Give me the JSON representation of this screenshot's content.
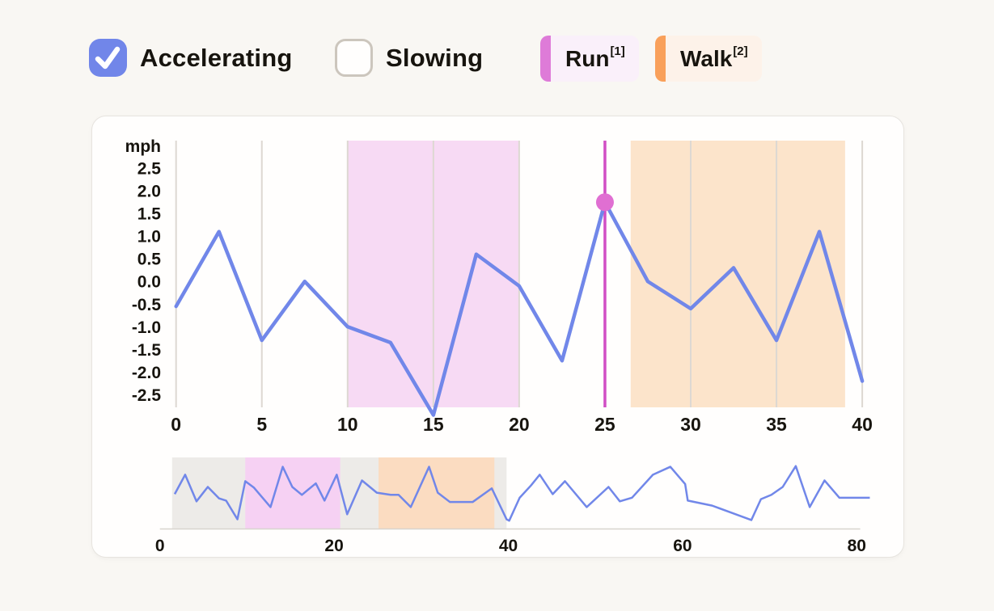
{
  "controls": {
    "accelerating": {
      "label": "Accelerating",
      "checked": true
    },
    "slowing": {
      "label": "Slowing",
      "checked": false
    }
  },
  "legend": [
    {
      "label": "Run",
      "sup": "[1]",
      "strip_color": "#de7bd8",
      "bg": "#faf0fa"
    },
    {
      "label": "Walk",
      "sup": "[2]",
      "strip_color": "#f9a05a",
      "bg": "#fdf2e9"
    }
  ],
  "colors": {
    "line_blue": "#7187e9",
    "checkbox_blue": "#7186e9",
    "grid": "#ddd8d2",
    "marker_line": "#d14fc5",
    "marker_dot": "#e06fd2",
    "region_run": "#f7daf4",
    "region_walk": "#fce4cb",
    "mini_selection": "#edebe8",
    "mini_run": "#f6d1f3",
    "mini_walk": "#fbdcc1",
    "mini_axis": "#d8d4ce"
  },
  "chart_data": {
    "type": "line",
    "unit_label": "mph",
    "main": {
      "x": [
        0,
        2.5,
        5,
        7.5,
        10,
        12.5,
        15,
        17.5,
        20,
        22.5,
        25,
        27.5,
        30,
        32.5,
        35,
        37.5,
        40
      ],
      "values": [
        -0.55,
        1.1,
        -1.3,
        0.0,
        -1.0,
        -1.35,
        -2.95,
        0.6,
        -0.1,
        -1.75,
        1.75,
        0.0,
        -0.6,
        0.3,
        -1.3,
        1.1,
        -2.2
      ],
      "xlim": [
        0,
        40
      ],
      "ylim": [
        -2.78,
        3.11
      ],
      "x_ticks": [
        0,
        5,
        10,
        15,
        20,
        25,
        30,
        35,
        40
      ],
      "x_tick_labels": [
        "0",
        "5",
        "10",
        "15",
        "20",
        "25",
        "30",
        "35",
        "40"
      ],
      "y_ticks": [
        2.5,
        2.0,
        1.5,
        1.0,
        0.5,
        0.0,
        -0.5,
        -1.0,
        -1.5,
        -2.0,
        -2.5
      ],
      "y_tick_labels": [
        "2.5",
        "2.0",
        "1.5",
        "1.0",
        "0.5",
        "0.0",
        "-0.5",
        "-1.0",
        "-1.5",
        "-2.0",
        "-2.5"
      ],
      "grid": "vertical-only",
      "regions": [
        {
          "name": "Run",
          "from": 10,
          "to": 20,
          "color": "#f7daf4"
        },
        {
          "name": "Walk",
          "from": 26.5,
          "to": 39,
          "color": "#fce4cb"
        }
      ],
      "marker": {
        "x": 25,
        "value": 1.75
      }
    },
    "mini": {
      "xlim": [
        0,
        82
      ],
      "x_ticks": [
        0,
        20,
        40,
        60,
        80
      ],
      "x_tick_labels": [
        "0",
        "20",
        "40",
        "60",
        "80"
      ],
      "y_normalized": true,
      "bands": [
        {
          "name": "view-window",
          "from": 1.4,
          "to": 39.8,
          "color": "#edebe8"
        },
        {
          "name": "Run",
          "from": 9.8,
          "to": 20.7,
          "color": "#f6d1f3"
        },
        {
          "name": "Walk",
          "from": 25.1,
          "to": 38.4,
          "color": "#fbdcc1"
        }
      ],
      "points": [
        [
          1.7,
          0.49
        ],
        [
          2.9,
          0.76
        ],
        [
          4.2,
          0.39
        ],
        [
          5.5,
          0.59
        ],
        [
          6.8,
          0.43
        ],
        [
          7.6,
          0.4
        ],
        [
          8.9,
          0.14
        ],
        [
          9.8,
          0.67
        ],
        [
          10.8,
          0.58
        ],
        [
          12.7,
          0.31
        ],
        [
          14.1,
          0.87
        ],
        [
          15.2,
          0.59
        ],
        [
          16.3,
          0.48
        ],
        [
          17.9,
          0.64
        ],
        [
          18.9,
          0.4
        ],
        [
          20.3,
          0.76
        ],
        [
          21.5,
          0.21
        ],
        [
          23.2,
          0.68
        ],
        [
          24.1,
          0.59
        ],
        [
          24.9,
          0.51
        ],
        [
          26.5,
          0.48
        ],
        [
          27.4,
          0.48
        ],
        [
          28.8,
          0.31
        ],
        [
          30.9,
          0.87
        ],
        [
          31.9,
          0.51
        ],
        [
          33.3,
          0.38
        ],
        [
          35.9,
          0.38
        ],
        [
          38.1,
          0.57
        ],
        [
          39.8,
          0.14
        ],
        [
          40.1,
          0.12
        ],
        [
          41.3,
          0.44
        ],
        [
          42.6,
          0.61
        ],
        [
          43.6,
          0.76
        ],
        [
          45.1,
          0.49
        ],
        [
          46.5,
          0.67
        ],
        [
          49.0,
          0.31
        ],
        [
          51.5,
          0.59
        ],
        [
          52.8,
          0.39
        ],
        [
          54.2,
          0.44
        ],
        [
          56.6,
          0.76
        ],
        [
          58.6,
          0.87
        ],
        [
          60.3,
          0.63
        ],
        [
          60.6,
          0.4
        ],
        [
          63.4,
          0.33
        ],
        [
          67.9,
          0.13
        ],
        [
          69.0,
          0.42
        ],
        [
          70.2,
          0.48
        ],
        [
          71.5,
          0.59
        ],
        [
          73.0,
          0.88
        ],
        [
          74.6,
          0.31
        ],
        [
          76.3,
          0.68
        ],
        [
          78.0,
          0.44
        ],
        [
          79.2,
          0.44
        ],
        [
          81.5,
          0.44
        ]
      ]
    }
  }
}
